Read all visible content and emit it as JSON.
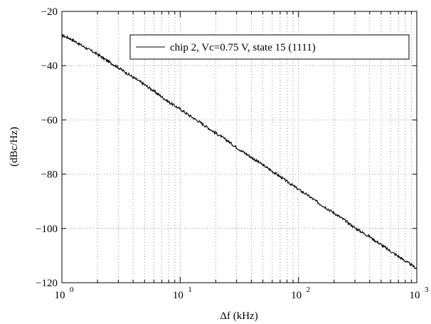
{
  "chart_data": {
    "type": "line",
    "title": "",
    "xlabel": "Δf (kHz)",
    "ylabel": "(dBc/Hz)",
    "xscale": "log",
    "xlim": [
      1,
      1000
    ],
    "ylim": [
      -120,
      -20
    ],
    "xticks": [
      {
        "base": "10",
        "exp": "0"
      },
      {
        "base": "10",
        "exp": "1"
      },
      {
        "base": "10",
        "exp": "2"
      },
      {
        "base": "10",
        "exp": "3"
      }
    ],
    "yticks": [
      "−120",
      "−100",
      "−80",
      "−60",
      "−40",
      "−20"
    ],
    "grid": true,
    "legend_position": "top-right",
    "series": [
      {
        "name": "chip 2, Vc=0.75 V, state 15 (1111)",
        "color": "#000000",
        "x": [
          1,
          1.2,
          1.5,
          2,
          2.5,
          3,
          4,
          5,
          6,
          7,
          8,
          10,
          12,
          15,
          20,
          25,
          30,
          40,
          50,
          60,
          70,
          80,
          100,
          120,
          150,
          200,
          250,
          300,
          400,
          500,
          600,
          700,
          800,
          1000
        ],
        "y": [
          -28.8,
          -30.2,
          -32.8,
          -35.8,
          -38.6,
          -40.7,
          -44.3,
          -47.0,
          -49.4,
          -51.5,
          -53.4,
          -56.0,
          -58.4,
          -61.1,
          -64.9,
          -67.6,
          -70.2,
          -73.8,
          -76.6,
          -78.9,
          -80.9,
          -82.7,
          -85.6,
          -87.8,
          -90.8,
          -94.3,
          -97.2,
          -99.8,
          -103.1,
          -106.0,
          -108.4,
          -110.3,
          -112.0,
          -114.8
        ]
      }
    ]
  }
}
